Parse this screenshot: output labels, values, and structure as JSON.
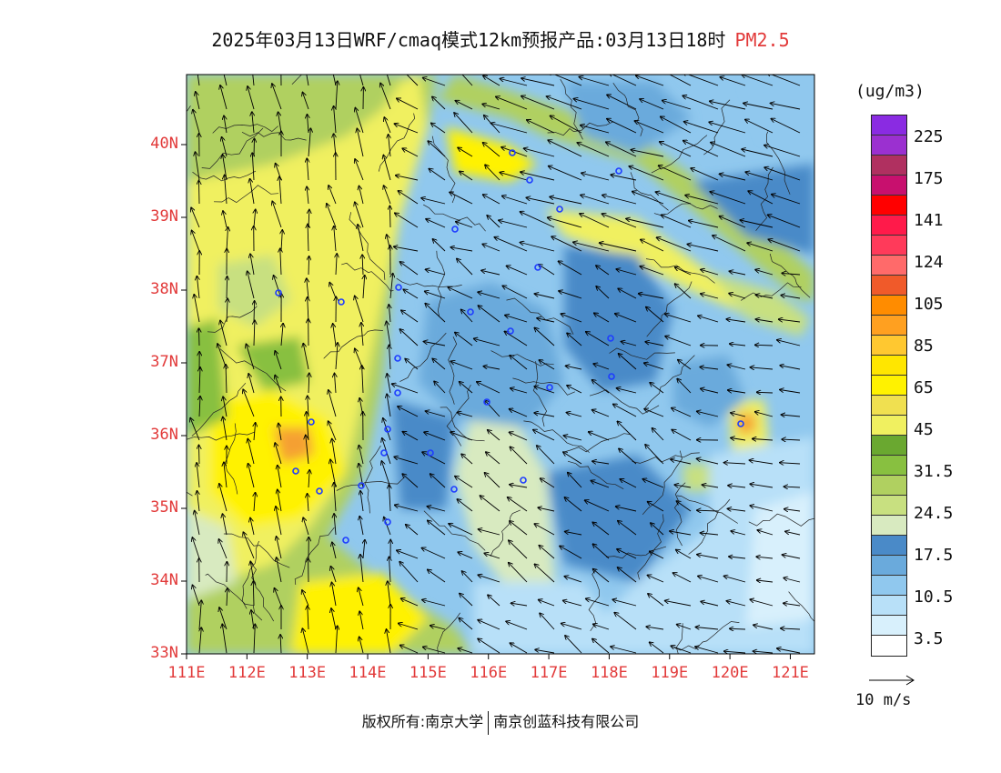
{
  "title": {
    "main": "2025年03月13日WRF/cmaq模式12km预报产品:03月13日18时",
    "species": "PM2.5"
  },
  "map": {
    "lat_labels": [
      "40N",
      "39N",
      "38N",
      "37N",
      "36N",
      "35N",
      "34N",
      "33N"
    ],
    "lon_labels": [
      "111E",
      "112E",
      "113E",
      "114E",
      "115E",
      "116E",
      "117E",
      "118E",
      "119E",
      "120E",
      "121E"
    ],
    "lat_values": [
      40,
      39,
      38,
      37,
      36,
      35,
      34,
      33
    ],
    "lon_values": [
      111,
      112,
      113,
      114,
      115,
      116,
      117,
      118,
      119,
      120,
      121
    ],
    "wind_vector_color": "#000000",
    "boundary_color": "#222222",
    "station_marker_color": "#1e3cff"
  },
  "colorbar": {
    "unit": "(ug/m3)",
    "labels": [
      "225",
      "175",
      "141",
      "124",
      "105",
      "85",
      "65",
      "45",
      "31.5",
      "24.5",
      "17.5",
      "10.5",
      "3.5"
    ],
    "colors": [
      "#8a2be2",
      "#9b30d0",
      "#b03060",
      "#c8106e",
      "#ff0000",
      "#ff1a4a",
      "#ff3a5a",
      "#ff6a6a",
      "#f05a2a",
      "#ff8c00",
      "#ffa020",
      "#ffc830",
      "#ffe600",
      "#fff200",
      "#f0e050",
      "#f0f060",
      "#6aa830",
      "#88c040",
      "#b0d060",
      "#c8e080",
      "#d8eac0",
      "#4a8ac8",
      "#6aaadc",
      "#90c8ee",
      "#b8e0f8",
      "#d8f0fc",
      "#ffffff"
    ]
  },
  "reference_vector": {
    "label": "10 m/s"
  },
  "copyright": {
    "left": "版权所有:南京大学",
    "right": "南京创蓝科技有限公司"
  }
}
